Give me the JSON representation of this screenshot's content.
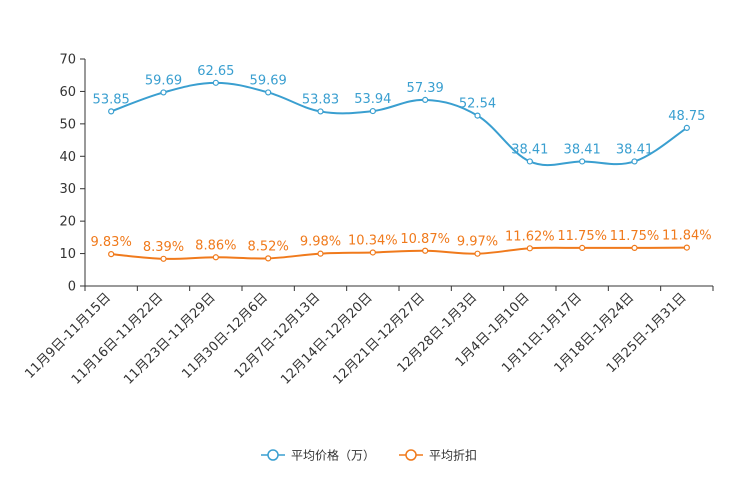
{
  "chart_data": {
    "type": "line",
    "title": "",
    "xlabel": "",
    "ylabel": "",
    "ylim": [
      0,
      70
    ],
    "yticks": [
      0,
      10,
      20,
      30,
      40,
      50,
      60,
      70
    ],
    "grid": false,
    "legend_position": "bottom-center",
    "categories": [
      "11月9日-11月15日",
      "11月16日-11月22日",
      "11月23日-11月29日",
      "11月30日-12月6日",
      "12月7日-12月13日",
      "12月14日-12月20日",
      "12月21日-12月27日",
      "12月28日-1月3日",
      "1月4日-1月10日",
      "1月11日-1月17日",
      "1月18日-1月24日",
      "1月25日-1月31日"
    ],
    "series": [
      {
        "name": "平均价格（万）",
        "color": "#3a9fd0",
        "values": [
          53.85,
          59.69,
          62.65,
          59.69,
          53.83,
          53.94,
          57.39,
          52.54,
          38.41,
          38.41,
          38.41,
          48.75
        ],
        "labels": [
          "53.85",
          "59.69",
          "62.65",
          "59.69",
          "53.83",
          "53.94",
          "57.39",
          "52.54",
          "38.41",
          "38.41",
          "38.41",
          "48.75"
        ]
      },
      {
        "name": "平均折扣",
        "color": "#f07a1c",
        "values": [
          9.83,
          8.39,
          8.86,
          8.52,
          9.98,
          10.34,
          10.87,
          9.97,
          11.62,
          11.75,
          11.75,
          11.84
        ],
        "labels": [
          "9.83%",
          "8.39%",
          "8.86%",
          "8.52%",
          "9.98%",
          "10.34%",
          "10.87%",
          "9.97%",
          "11.62%",
          "11.75%",
          "11.75%",
          "11.84%"
        ]
      }
    ]
  }
}
